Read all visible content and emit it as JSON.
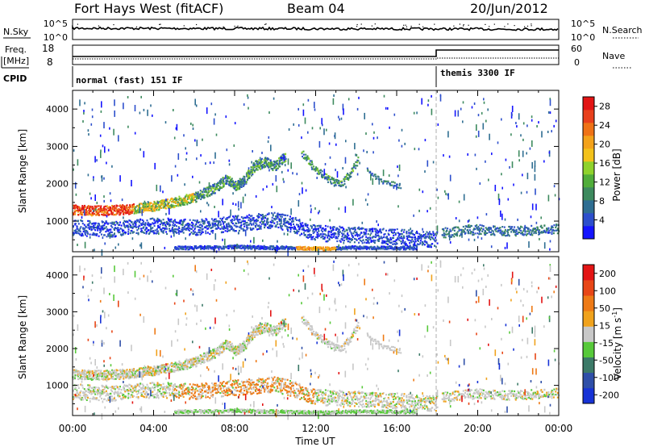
{
  "header": {
    "title": "Fort Hays West (fitACF)",
    "beam": "Beam 04",
    "date": "20/Jun/2012"
  },
  "noise_panel": {
    "left_label": "N.Sky",
    "left_ticks": [
      "10^5",
      "10^0"
    ],
    "right_ticks": [
      "10^5",
      "10^0"
    ],
    "right_label": "N.Search"
  },
  "freq_panel": {
    "left_label_top": "Freq.",
    "left_label_bottom": "[MHz]",
    "left_ticks": [
      "18",
      "8"
    ],
    "right_ticks": [
      "60",
      "0"
    ],
    "right_label": "Nave"
  },
  "cpid": {
    "label": "CPID",
    "segments": [
      "normal (fast) 151 IF",
      "themis 3300 IF"
    ],
    "switch_time_hours": 18
  },
  "chart_data": [
    {
      "type": "heatmap",
      "ylabel": "Slant Range [km]",
      "y_ticks": [
        "1000",
        "2000",
        "3000",
        "4000"
      ],
      "ylim": [
        180,
        4500
      ],
      "xlim_hours": [
        0,
        24
      ],
      "colorbar": {
        "label": "Power [dB]",
        "ticks": [
          "4",
          "8",
          "12",
          "16",
          "20",
          "24",
          "28"
        ],
        "range": [
          0,
          30
        ],
        "colors": [
          "#1414ff",
          "#2d4fcc",
          "#2f6e92",
          "#3d8a5e",
          "#50ad3a",
          "#8fd22c",
          "#f3c21b",
          "#f3a21b",
          "#ef7216",
          "#e8401c",
          "#e21414"
        ]
      }
    },
    {
      "type": "heatmap",
      "ylabel": "Slant Range [km]",
      "y_ticks": [
        "1000",
        "2000",
        "3000",
        "4000"
      ],
      "ylim": [
        180,
        4500
      ],
      "xlim_hours": [
        0,
        24
      ],
      "colorbar": {
        "label": "Velocity",
        "ticks": [
          "200",
          "100",
          "50",
          "15",
          "-15",
          "-50",
          "-100",
          "-200"
        ],
        "colors": [
          "#1733d6",
          "#2f4fa8",
          "#3c7a68",
          "#57c93a",
          "#c8c8c8",
          "#f0a21c",
          "#ee7a16",
          "#e84616",
          "#e31414"
        ]
      }
    }
  ],
  "x_axis": {
    "ticks": [
      "00:00",
      "04:00",
      "08:00",
      "12:00",
      "16:00",
      "20:00",
      "00:00"
    ],
    "tick_hours": [
      0,
      4,
      8,
      12,
      16,
      20,
      24
    ],
    "label": "Time UT"
  },
  "colors": {
    "scatter_blue": "#1a2ed0",
    "terminator_line": "#9a9a9a"
  }
}
